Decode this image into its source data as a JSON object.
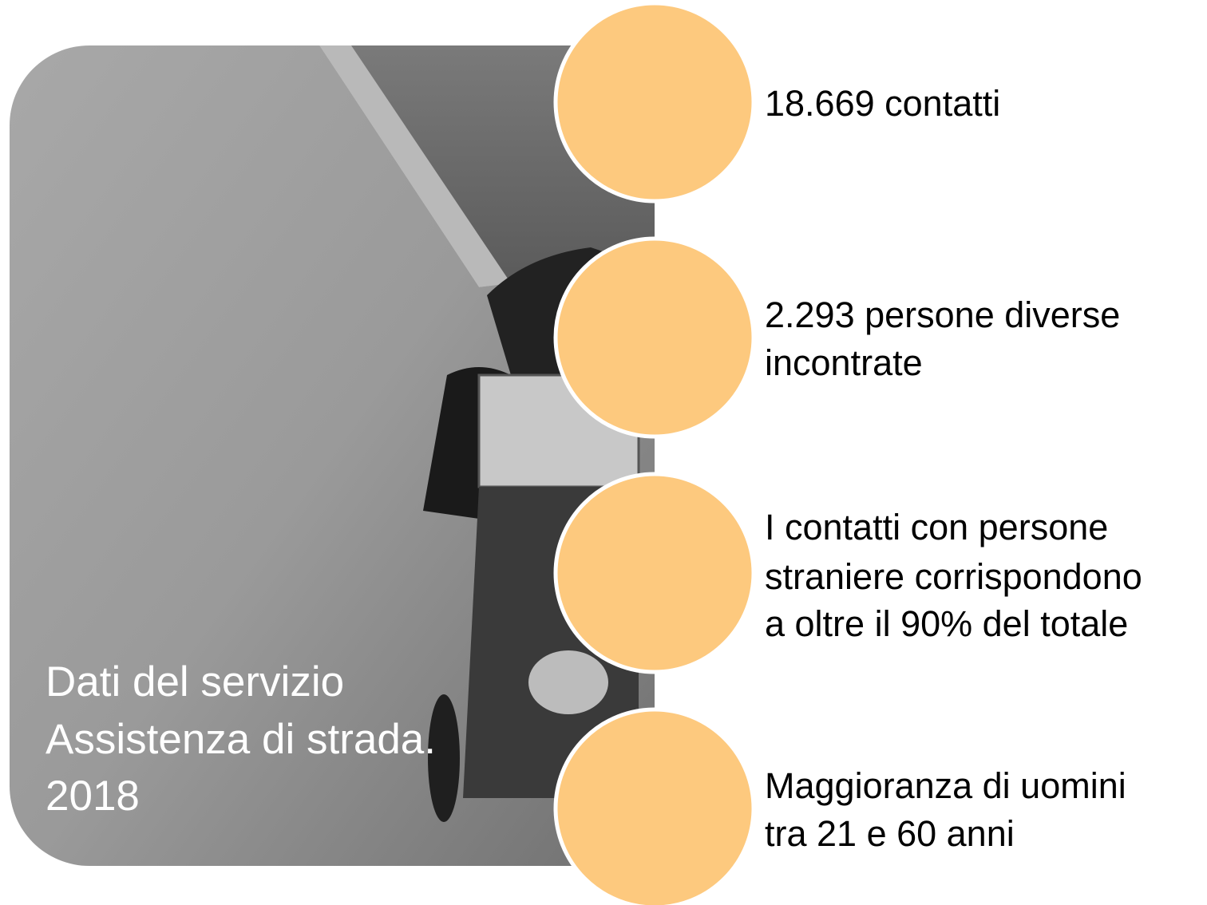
{
  "panel": {
    "title_lines": [
      "Dati del servizio",
      "Assistenza di strada.",
      "2018"
    ]
  },
  "items": [
    {
      "lines": [
        "18.669 contatti"
      ]
    },
    {
      "lines": [
        "2.293 persone diverse",
        "incontrate"
      ]
    },
    {
      "lines": [
        "I contatti con persone",
        "straniere corrispondono",
        "a oltre il 90% del totale"
      ]
    },
    {
      "lines": [
        "Maggioranza di uomini",
        "tra 21 e 60 anni"
      ]
    }
  ]
}
